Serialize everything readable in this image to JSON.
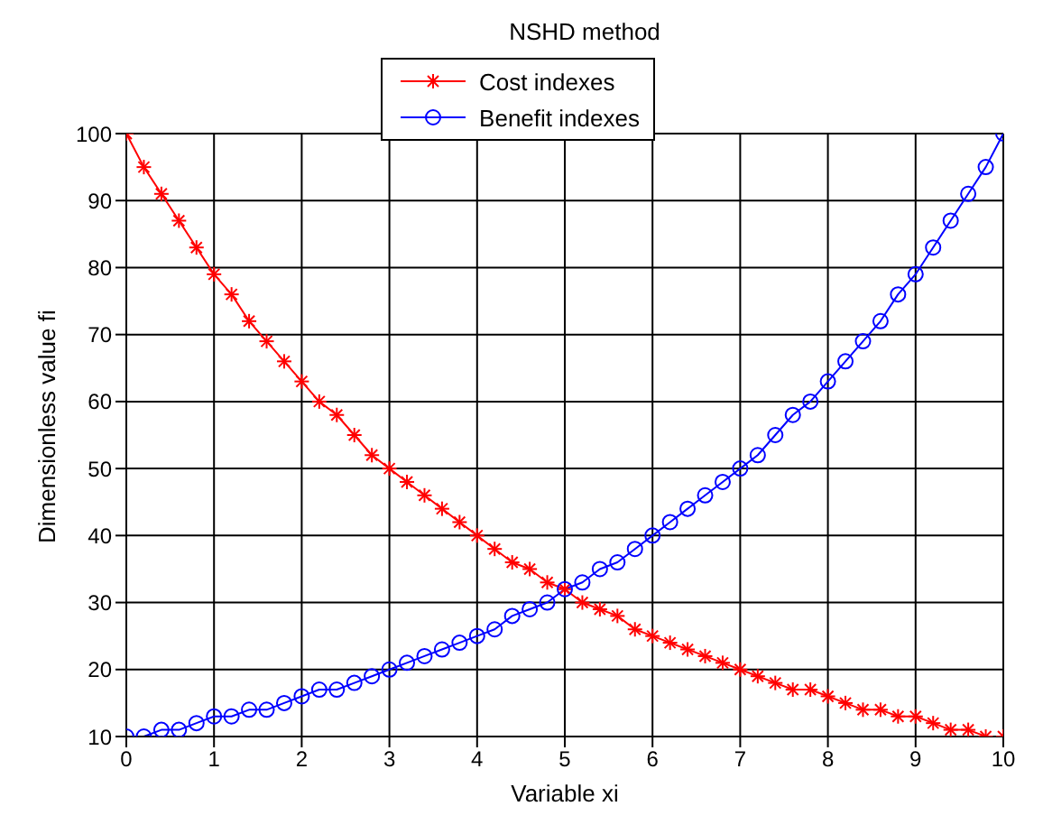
{
  "chart_data": {
    "type": "line",
    "title": "NSHD method",
    "xlabel": "Variable xi",
    "ylabel": "Dimensionless value fi",
    "x": [
      0,
      0.2,
      0.4,
      0.6,
      0.8,
      1,
      1.2,
      1.4,
      1.6,
      1.8,
      2,
      2.2,
      2.4,
      2.6,
      2.8,
      3,
      3.2,
      3.4,
      3.6,
      3.8,
      4,
      4.2,
      4.4,
      4.6,
      4.8,
      5,
      5.2,
      5.4,
      5.6,
      5.8,
      6,
      6.2,
      6.4,
      6.6,
      6.8,
      7,
      7.2,
      7.4,
      7.6,
      7.8,
      8,
      8.2,
      8.4,
      8.6,
      8.8,
      9,
      9.2,
      9.4,
      9.6,
      9.8,
      10
    ],
    "series": [
      {
        "name": "Cost indexes",
        "color": "#ff0000",
        "marker": "cross",
        "values": [
          100,
          95,
          91,
          87,
          83,
          79,
          76,
          72,
          69,
          66,
          63,
          60,
          58,
          55,
          52,
          50,
          48,
          46,
          44,
          42,
          40,
          38,
          36,
          35,
          33,
          32,
          30,
          29,
          28,
          26,
          25,
          24,
          23,
          22,
          21,
          20,
          19,
          18,
          17,
          17,
          16,
          15,
          14,
          14,
          13,
          13,
          12,
          11,
          11,
          10,
          10
        ]
      },
      {
        "name": "Benefit indexes",
        "color": "#0000ff",
        "marker": "circle",
        "values": [
          10,
          10,
          11,
          11,
          12,
          13,
          13,
          14,
          14,
          15,
          16,
          17,
          17,
          18,
          19,
          20,
          21,
          22,
          23,
          24,
          25,
          26,
          28,
          29,
          30,
          32,
          33,
          35,
          36,
          38,
          40,
          42,
          44,
          46,
          48,
          50,
          52,
          55,
          58,
          60,
          63,
          66,
          69,
          72,
          76,
          79,
          83,
          87,
          91,
          95,
          100
        ]
      }
    ],
    "xlim": [
      0,
      10
    ],
    "xticks": [
      0,
      1,
      2,
      3,
      4,
      5,
      6,
      7,
      8,
      9,
      10
    ],
    "ylim": [
      10,
      100
    ],
    "yticks": [
      10,
      20,
      30,
      40,
      50,
      60,
      70,
      80,
      90,
      100
    ],
    "grid": true,
    "legend": "top",
    "line_style": "solid"
  }
}
